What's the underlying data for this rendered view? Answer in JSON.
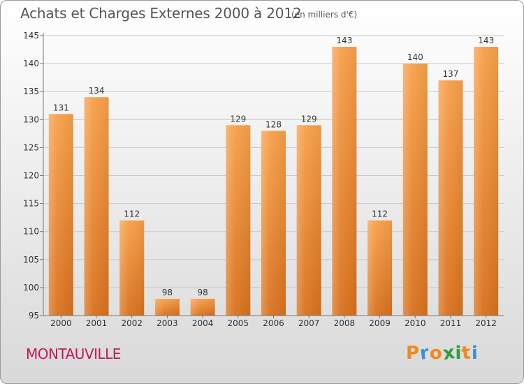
{
  "header": {
    "title": "Achats et Charges Externes 2000 à 2012",
    "subtitle": "(en milliers d'€)"
  },
  "footer": {
    "commune": "MONTAUVILLE",
    "logo_text": "Proxiti"
  },
  "colors": {
    "bar_top": "#f7a04a",
    "bar_bottom": "#d8711d",
    "grid": "#c8c8c8",
    "axis_text": "#333333",
    "logo_letters": [
      "#f08a1c",
      "#3b8fd8",
      "#f08a1c",
      "#2e9e3c",
      "#2e9e3c",
      "#f08a1c",
      "#3b8fd8"
    ]
  },
  "chart_data": {
    "type": "bar",
    "title": "Achats et Charges Externes 2000 à 2012",
    "subtitle": "(en milliers d'€)",
    "categories": [
      "2000",
      "2001",
      "2002",
      "2003",
      "2004",
      "2005",
      "2006",
      "2007",
      "2008",
      "2009",
      "2010",
      "2011",
      "2012"
    ],
    "values": [
      131,
      134,
      112,
      98,
      98,
      129,
      128,
      129,
      143,
      112,
      140,
      137,
      143
    ],
    "data_labels": [
      "131",
      "134",
      "112",
      "98",
      "98",
      "129",
      "128",
      "129",
      "143",
      "112",
      "140",
      "137",
      "143"
    ],
    "ylim": [
      95,
      145
    ],
    "yticks": [
      95,
      100,
      105,
      110,
      115,
      120,
      125,
      130,
      135,
      140,
      145
    ],
    "grid": true,
    "legend": "none"
  }
}
